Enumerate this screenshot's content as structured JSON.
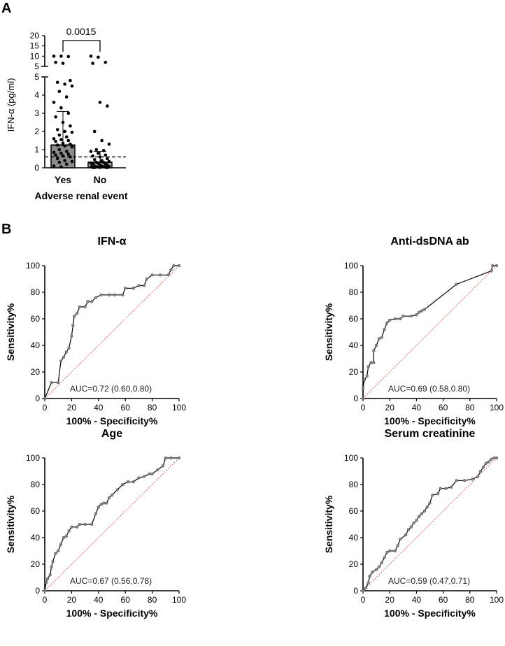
{
  "panel_labels": {
    "a": "A",
    "b": "B"
  },
  "chart_data": [
    {
      "type": "bar",
      "id": "panel-a",
      "title": "",
      "ylabel": "IFN-α (pg/ml)",
      "xlabel": "Adverse renal event",
      "categories": [
        "Yes",
        "No"
      ],
      "values": [
        1.25,
        0.3
      ],
      "error_upper": [
        3.1,
        0.9
      ],
      "threshold": 0.6,
      "p_value": "0.0015",
      "ylim": [
        0,
        20
      ],
      "y_break": {
        "lower_max": 5,
        "upper_min": 5,
        "upper_max": 20
      },
      "yticks_lower": [
        "0",
        "1",
        "2",
        "3",
        "4",
        "5"
      ],
      "yticks_upper": [
        "5",
        "10",
        "15",
        "20"
      ],
      "points": {
        "Yes": [
          10,
          10,
          9.8,
          7,
          6.5,
          4.8,
          4.7,
          4.6,
          4.5,
          4.2,
          3.9,
          3.6,
          3.3,
          3.0,
          2.8,
          2.5,
          2.3,
          2.1,
          2.0,
          1.95,
          1.8,
          1.7,
          1.6,
          1.55,
          1.5,
          1.45,
          1.35,
          1.3,
          1.25,
          1.2,
          1.15,
          1.0,
          0.9,
          0.85,
          0.8,
          0.75,
          0.7,
          0.65,
          0.6,
          0.5,
          0.4,
          0.35,
          0.3,
          0.2,
          0.1,
          0.05
        ],
        "No": [
          10,
          9.5,
          7,
          6.5,
          3.6,
          3.4,
          2.0,
          1.5,
          1.3,
          1.0,
          0.95,
          0.9,
          0.8,
          0.7,
          0.65,
          0.6,
          0.5,
          0.45,
          0.4,
          0.35,
          0.3,
          0.3,
          0.25,
          0.25,
          0.2,
          0.2,
          0.15,
          0.15,
          0.1,
          0.1,
          0.08,
          0.06,
          0.05,
          0.05,
          0.04,
          0.03,
          0.02,
          0.02,
          0.01,
          0.01
        ]
      }
    },
    {
      "type": "line",
      "id": "roc-ifn",
      "title": "IFN-α",
      "xlabel": "100% - Specificity%",
      "ylabel": "Sensitivity%",
      "xlim": [
        0,
        100
      ],
      "ylim": [
        0,
        100
      ],
      "xticks": [
        "0",
        "20",
        "40",
        "60",
        "80",
        "100"
      ],
      "yticks": [
        "0",
        "20",
        "40",
        "60",
        "80",
        "100"
      ],
      "annotation": "AUC=0.72 (0.60,0.80)",
      "series": [
        {
          "name": "ROC",
          "points": [
            [
              0,
              0
            ],
            [
              5,
              12
            ],
            [
              10,
              12
            ],
            [
              12,
              28
            ],
            [
              14,
              31
            ],
            [
              16,
              35
            ],
            [
              18,
              38
            ],
            [
              20,
              47
            ],
            [
              21,
              55
            ],
            [
              22,
              62
            ],
            [
              24,
              64
            ],
            [
              26,
              69
            ],
            [
              30,
              69
            ],
            [
              32,
              73
            ],
            [
              35,
              73
            ],
            [
              38,
              76
            ],
            [
              42,
              78
            ],
            [
              48,
              78
            ],
            [
              52,
              78
            ],
            [
              58,
              78
            ],
            [
              60,
              83
            ],
            [
              66,
              83
            ],
            [
              70,
              85
            ],
            [
              74,
              85
            ],
            [
              76,
              90
            ],
            [
              80,
              93
            ],
            [
              86,
              93
            ],
            [
              92,
              93
            ],
            [
              94,
              97
            ],
            [
              96,
              100
            ],
            [
              100,
              100
            ]
          ]
        }
      ],
      "reference": [
        [
          0,
          0
        ],
        [
          100,
          100
        ]
      ]
    },
    {
      "type": "line",
      "id": "roc-dsdna",
      "title": "Anti-dsDNA ab",
      "xlabel": "100% - Specificity%",
      "ylabel": "Sensitivity%",
      "xlim": [
        0,
        100
      ],
      "ylim": [
        0,
        100
      ],
      "xticks": [
        "0",
        "20",
        "40",
        "60",
        "80",
        "100"
      ],
      "yticks": [
        "0",
        "20",
        "40",
        "60",
        "80",
        "100"
      ],
      "annotation": "AUC=0.69 (0.58,0.80)",
      "series": [
        {
          "name": "ROC",
          "points": [
            [
              0,
              0
            ],
            [
              0,
              8
            ],
            [
              1,
              14
            ],
            [
              3,
              17
            ],
            [
              4,
              24
            ],
            [
              6,
              27
            ],
            [
              8,
              27
            ],
            [
              8,
              36
            ],
            [
              10,
              40
            ],
            [
              12,
              45
            ],
            [
              14,
              46
            ],
            [
              16,
              52
            ],
            [
              18,
              57
            ],
            [
              20,
              59
            ],
            [
              24,
              60
            ],
            [
              28,
              60
            ],
            [
              30,
              62
            ],
            [
              36,
              62
            ],
            [
              40,
              63
            ],
            [
              42,
              65
            ],
            [
              44,
              66
            ],
            [
              46,
              67
            ],
            [
              70,
              86
            ],
            [
              96,
              96
            ],
            [
              97,
              100
            ],
            [
              100,
              100
            ]
          ]
        }
      ],
      "reference": [
        [
          0,
          0
        ],
        [
          100,
          100
        ]
      ]
    },
    {
      "type": "line",
      "id": "roc-age",
      "title": "Age",
      "xlabel": "100% - Specificity%",
      "ylabel": "Sensitivity%",
      "xlim": [
        0,
        100
      ],
      "ylim": [
        0,
        100
      ],
      "xticks": [
        "0",
        "20",
        "40",
        "60",
        "80",
        "100"
      ],
      "yticks": [
        "0",
        "20",
        "40",
        "60",
        "80",
        "100"
      ],
      "annotation": "AUC=0.67 (0.56,0.78)",
      "series": [
        {
          "name": "ROC",
          "points": [
            [
              0,
              0
            ],
            [
              1,
              6
            ],
            [
              2,
              9
            ],
            [
              4,
              12
            ],
            [
              5,
              18
            ],
            [
              6,
              22
            ],
            [
              8,
              28
            ],
            [
              10,
              30
            ],
            [
              12,
              35
            ],
            [
              14,
              40
            ],
            [
              16,
              41
            ],
            [
              18,
              45
            ],
            [
              20,
              48
            ],
            [
              24,
              48
            ],
            [
              26,
              50
            ],
            [
              30,
              50
            ],
            [
              35,
              50
            ],
            [
              38,
              58
            ],
            [
              40,
              63
            ],
            [
              42,
              65
            ],
            [
              44,
              66
            ],
            [
              46,
              66
            ],
            [
              48,
              70
            ],
            [
              50,
              72
            ],
            [
              54,
              76
            ],
            [
              58,
              80
            ],
            [
              62,
              82
            ],
            [
              66,
              82
            ],
            [
              70,
              85
            ],
            [
              74,
              86
            ],
            [
              78,
              88
            ],
            [
              80,
              88
            ],
            [
              84,
              91
            ],
            [
              88,
              94
            ],
            [
              90,
              100
            ],
            [
              94,
              100
            ],
            [
              100,
              100
            ]
          ]
        }
      ],
      "reference": [
        [
          0,
          0
        ],
        [
          100,
          100
        ]
      ]
    },
    {
      "type": "line",
      "id": "roc-creatinine",
      "title": "Serum creatinine",
      "xlabel": "100% - Specificity%",
      "ylabel": "Sensitivity%",
      "xlim": [
        0,
        100
      ],
      "ylim": [
        0,
        100
      ],
      "xticks": [
        "0",
        "20",
        "40",
        "60",
        "80",
        "100"
      ],
      "yticks": [
        "0",
        "20",
        "40",
        "60",
        "80",
        "100"
      ],
      "annotation": "AUC=0.59 (0.47,0.71)",
      "series": [
        {
          "name": "ROC",
          "points": [
            [
              0,
              0
            ],
            [
              2,
              2
            ],
            [
              4,
              6
            ],
            [
              5,
              11
            ],
            [
              7,
              14
            ],
            [
              10,
              16
            ],
            [
              12,
              18
            ],
            [
              14,
              21
            ],
            [
              16,
              25
            ],
            [
              18,
              29
            ],
            [
              20,
              30
            ],
            [
              24,
              30
            ],
            [
              26,
              34
            ],
            [
              28,
              39
            ],
            [
              32,
              42
            ],
            [
              34,
              46
            ],
            [
              36,
              48
            ],
            [
              38,
              51
            ],
            [
              40,
              53
            ],
            [
              42,
              56
            ],
            [
              44,
              58
            ],
            [
              46,
              60
            ],
            [
              48,
              63
            ],
            [
              50,
              66
            ],
            [
              52,
              72
            ],
            [
              56,
              73
            ],
            [
              58,
              77
            ],
            [
              62,
              77
            ],
            [
              66,
              78
            ],
            [
              70,
              83
            ],
            [
              76,
              83
            ],
            [
              82,
              84
            ],
            [
              86,
              86
            ],
            [
              88,
              90
            ],
            [
              90,
              93
            ],
            [
              92,
              96
            ],
            [
              94,
              97
            ],
            [
              96,
              99
            ],
            [
              98,
              100
            ],
            [
              100,
              100
            ]
          ]
        }
      ],
      "reference": [
        [
          0,
          0
        ],
        [
          100,
          100
        ]
      ]
    }
  ]
}
